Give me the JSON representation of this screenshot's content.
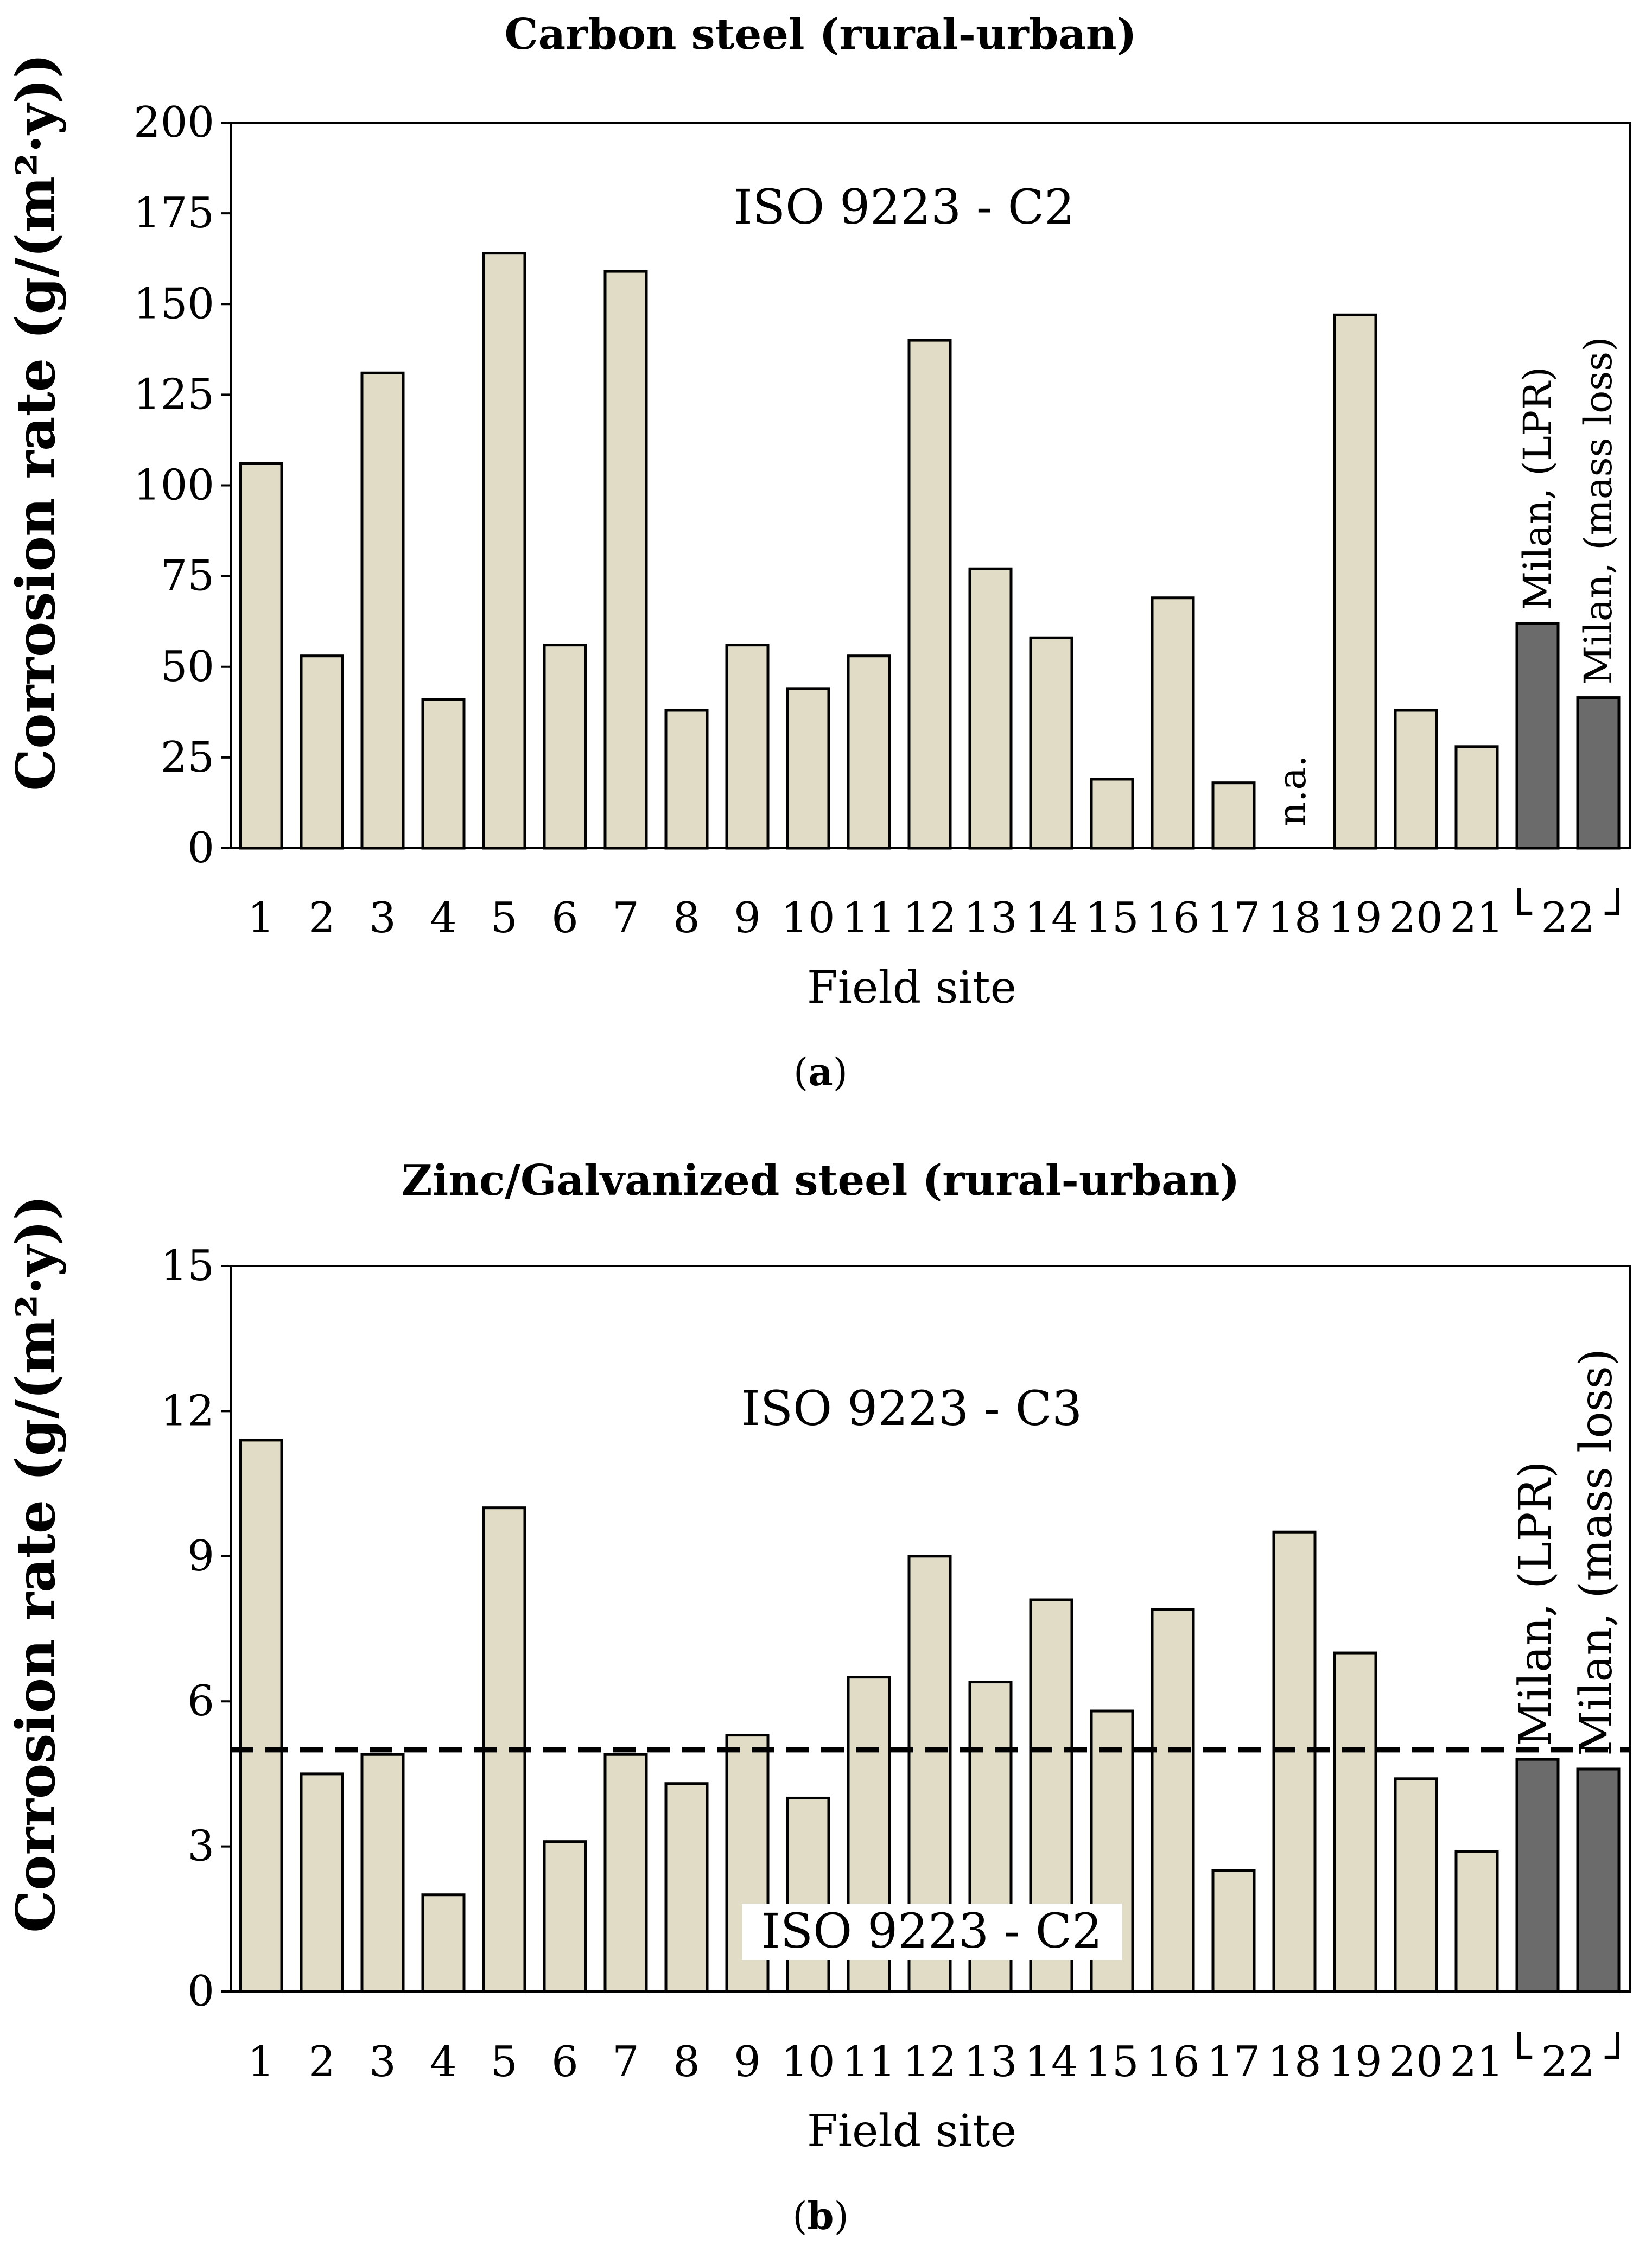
{
  "chart_data": [
    {
      "type": "bar",
      "panel": "a",
      "title": "Carbon steel (rural-urban)",
      "ylabel": "Corrosion rate (g/(m²·y))",
      "xlabel": "Field site",
      "ylim": [
        0,
        200
      ],
      "yticks": [
        0,
        25,
        50,
        75,
        100,
        125,
        150,
        175,
        200
      ],
      "categories": [
        "1",
        "2",
        "3",
        "4",
        "5",
        "6",
        "7",
        "8",
        "9",
        "10",
        "11",
        "12",
        "13",
        "14",
        "15",
        "16",
        "17",
        "18",
        "19",
        "20",
        "21",
        "Milan, (LPR)",
        "Milan, (mass loss)"
      ],
      "xtick_labels": [
        "1",
        "2",
        "3",
        "4",
        "5",
        "6",
        "7",
        "8",
        "9",
        "10",
        "11",
        "12",
        "13",
        "14",
        "15",
        "16",
        "17",
        "18",
        "19",
        "20",
        "21",
        "22"
      ],
      "values": [
        106,
        53,
        131,
        41,
        164,
        56,
        159,
        38,
        56,
        44,
        53,
        140,
        77,
        58,
        19,
        69,
        18,
        null,
        147,
        38,
        28,
        62,
        41.5
      ],
      "highlight": [
        false,
        false,
        false,
        false,
        false,
        false,
        false,
        false,
        false,
        false,
        false,
        false,
        false,
        false,
        false,
        false,
        false,
        false,
        false,
        false,
        false,
        true,
        true
      ],
      "missing_labels": {
        "18": "n.a."
      },
      "vertical_labels": [
        "Milan, (LPR)",
        "Milan, (mass loss)"
      ],
      "group_bracket": {
        "label": "22",
        "left": "└",
        "right": "┘"
      },
      "annotation": "ISO 9223 - C2"
    },
    {
      "type": "bar",
      "panel": "b",
      "title": "Zinc/Galvanized steel (rural-urban)",
      "ylabel": "Corrosion rate (g/(m²·y))",
      "xlabel": "Field site",
      "ylim": [
        0,
        15
      ],
      "yticks": [
        0,
        3,
        6,
        9,
        12,
        15
      ],
      "categories": [
        "1",
        "2",
        "3",
        "4",
        "5",
        "6",
        "7",
        "8",
        "9",
        "10",
        "11",
        "12",
        "13",
        "14",
        "15",
        "16",
        "17",
        "18",
        "19",
        "20",
        "21",
        "Milan, (LPR)",
        "Milan, (mass loss)"
      ],
      "xtick_labels": [
        "1",
        "2",
        "3",
        "4",
        "5",
        "6",
        "7",
        "8",
        "9",
        "10",
        "11",
        "12",
        "13",
        "14",
        "15",
        "16",
        "17",
        "18",
        "19",
        "20",
        "21",
        "22"
      ],
      "values": [
        11.4,
        4.5,
        4.9,
        2.0,
        10.0,
        3.1,
        4.9,
        4.3,
        5.3,
        4.0,
        6.5,
        9.0,
        6.4,
        8.1,
        5.8,
        7.9,
        2.5,
        9.5,
        7.0,
        4.4,
        2.9,
        4.8,
        4.6
      ],
      "highlight": [
        false,
        false,
        false,
        false,
        false,
        false,
        false,
        false,
        false,
        false,
        false,
        false,
        false,
        false,
        false,
        false,
        false,
        false,
        false,
        false,
        false,
        true,
        true
      ],
      "vertical_labels": [
        "Milan, (LPR)",
        "Milan, (mass loss)"
      ],
      "group_bracket": {
        "label": "22",
        "left": "└",
        "right": "┘"
      },
      "threshold": 5,
      "annotation": "ISO 9223 - C3",
      "annotation_below": "ISO 9223 - C2"
    }
  ],
  "colors": {
    "bar_fill": "#e0dcc6",
    "bar_highlight": "#6b6b6b",
    "bar_stroke": "#000000"
  }
}
